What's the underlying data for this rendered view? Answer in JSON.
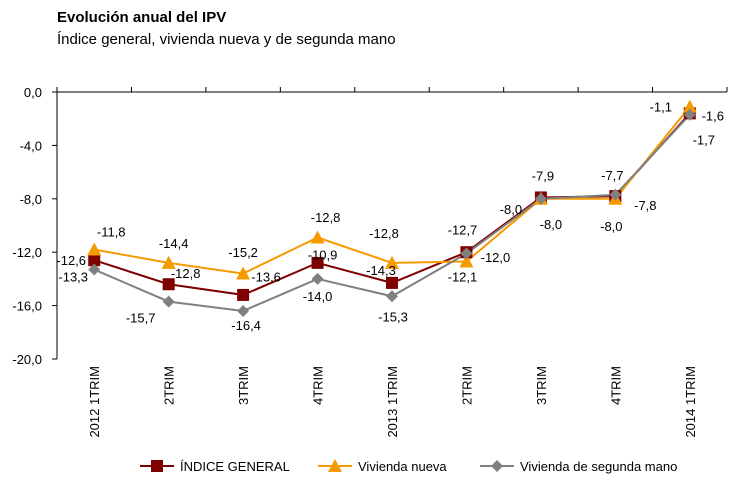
{
  "chart_data": {
    "type": "line",
    "title": "Evolución anual del IPV",
    "subtitle": "Índice general, vivienda nueva y de segunda mano",
    "xlabel": "",
    "ylabel": "",
    "categories": [
      "2012 1TRIM",
      "2TRIM",
      "3TRIM",
      "4TRIM",
      "2013 1TRIM",
      "2TRIM",
      "3TRIM",
      "4TRIM",
      "2014 1TRIM"
    ],
    "ylim": [
      -20,
      0
    ],
    "yticks": [
      0,
      -4,
      -8,
      -12,
      -16,
      -20
    ],
    "ytick_labels": [
      "0,0",
      "-4,0",
      "-8,0",
      "-12,0",
      "-16,0",
      "-20,0"
    ],
    "grid": false,
    "legend_position": "bottom",
    "series": [
      {
        "name": "ÍNDICE GENERAL",
        "color": "#7f0000",
        "marker": "square",
        "values": [
          -12.6,
          -14.4,
          -15.2,
          -12.8,
          -14.3,
          -12.0,
          -7.9,
          -7.8,
          -1.6
        ],
        "labels": [
          "-12,6",
          "-14,4",
          "-15,2",
          "-12,8",
          "-14,3",
          "-12,0",
          "-7,9",
          "-7,8",
          "-1,6"
        ]
      },
      {
        "name": "Vivienda nueva",
        "color": "#f59b00",
        "marker": "triangle",
        "values": [
          -11.8,
          -12.8,
          -13.6,
          -10.9,
          -12.8,
          -12.7,
          -8.0,
          -8.0,
          -1.1
        ],
        "labels": [
          "-11,8",
          "-12,8",
          "-13,6",
          "-10,9",
          "-12,8",
          "-12,7",
          "-8,0",
          "-8,0",
          "-1,1"
        ]
      },
      {
        "name": "Vivienda de segunda mano",
        "color": "#808080",
        "marker": "diamond",
        "values": [
          -13.3,
          -15.7,
          -16.4,
          -14.0,
          -15.3,
          -12.1,
          -8.0,
          -7.7,
          -1.7
        ],
        "labels": [
          "-13,3",
          "-15,7",
          "-16,4",
          "-14,0",
          "-15,3",
          "-12,1",
          "-8,0",
          "-7,7",
          "-1,7"
        ]
      }
    ]
  }
}
